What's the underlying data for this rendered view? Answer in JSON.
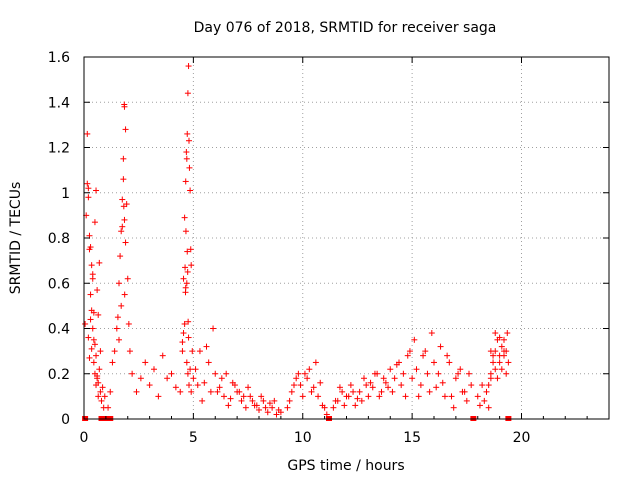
{
  "chart_data": {
    "type": "scatter",
    "title": "Day 076 of 2018, SRMTID for receiver saga",
    "xlabel": "GPS time / hours",
    "ylabel": "SRMTID / TECUs",
    "xlim": [
      0,
      24
    ],
    "ylim": [
      0,
      1.6
    ],
    "xticks": [
      0,
      5,
      10,
      15,
      20
    ],
    "yticks": [
      0,
      0.2,
      0.4,
      0.6,
      0.8,
      1.0,
      1.2,
      1.4,
      1.6
    ],
    "xtick_labels": [
      "0",
      "5",
      "10",
      "15",
      "20"
    ],
    "ytick_labels": [
      "0",
      "0.2",
      "0.4",
      "0.6",
      "0.8",
      "1",
      "1.2",
      "1.4",
      "1.6"
    ],
    "grid": true,
    "marker": "+",
    "color": "#ff0000",
    "series": [
      {
        "name": "SRMTID",
        "x": [
          0.05,
          0.1,
          0.15,
          0.2,
          0.25,
          0.3,
          0.35,
          0.4,
          0.45,
          0.5,
          0.55,
          0.6,
          0.65,
          0.7,
          0.75,
          0.8,
          0.85,
          0.9,
          0.95,
          0.15,
          0.2,
          0.25,
          0.3,
          0.35,
          0.4,
          0.45,
          0.5,
          0.55,
          0.6,
          0.65,
          0.7,
          0.75,
          0.2,
          0.25,
          0.3,
          0.35,
          0.4,
          0.45,
          0.5,
          0.55,
          0.6,
          0.65,
          1.1,
          1.2,
          1.3,
          1.4,
          1.5,
          1.55,
          1.6,
          1.65,
          1.7,
          1.75,
          1.8,
          1.85,
          1.9,
          1.95,
          2.0,
          2.05,
          2.1,
          1.6,
          1.7,
          1.75,
          1.8,
          1.85,
          1.9,
          1.82,
          1.84,
          1.86,
          2.2,
          2.4,
          2.6,
          2.8,
          3.0,
          3.2,
          3.4,
          3.6,
          3.8,
          4.0,
          4.2,
          4.4,
          4.5,
          4.55,
          4.6,
          4.65,
          4.7,
          4.75,
          4.8,
          4.85,
          4.9,
          4.95,
          5.0,
          4.5,
          4.55,
          4.6,
          4.65,
          4.7,
          4.72,
          4.75,
          4.78,
          4.8,
          4.82,
          4.85,
          4.88,
          4.9,
          4.62,
          4.64,
          4.66,
          4.68,
          4.7,
          4.72,
          4.74,
          4.76,
          4.78,
          5.1,
          5.3,
          5.5,
          5.7,
          5.9,
          6.1,
          6.3,
          6.5,
          6.7,
          6.9,
          7.1,
          7.3,
          7.5,
          7.7,
          7.9,
          8.1,
          8.3,
          8.5,
          8.7,
          8.9,
          5.2,
          5.4,
          5.6,
          5.8,
          6.0,
          6.2,
          6.4,
          6.6,
          6.8,
          7.0,
          7.2,
          7.4,
          7.6,
          7.8,
          8.0,
          8.2,
          8.4,
          8.6,
          8.8,
          9.0,
          9.3,
          9.5,
          9.7,
          9.9,
          10.1,
          10.3,
          10.5,
          10.7,
          10.9,
          11.1,
          9.4,
          9.6,
          9.8,
          10.0,
          10.2,
          10.4,
          10.6,
          10.8,
          11.0,
          11.4,
          11.6,
          11.8,
          12.0,
          12.2,
          12.4,
          12.6,
          12.8,
          13.0,
          13.2,
          13.4,
          13.6,
          13.8,
          14.0,
          14.2,
          14.4,
          14.6,
          14.8,
          11.5,
          11.7,
          11.9,
          12.1,
          12.3,
          12.5,
          12.7,
          12.9,
          13.1,
          13.3,
          13.5,
          13.7,
          13.9,
          14.1,
          14.3,
          14.5,
          14.7,
          14.9,
          15.0,
          15.2,
          15.4,
          15.6,
          15.8,
          16.0,
          16.2,
          16.4,
          16.6,
          16.8,
          17.0,
          17.2,
          17.4,
          17.6,
          15.1,
          15.3,
          15.5,
          15.7,
          15.9,
          16.1,
          16.3,
          16.5,
          16.7,
          16.9,
          17.1,
          17.3,
          17.5,
          17.7,
          18.0,
          18.1,
          18.2,
          18.3,
          18.4,
          18.5,
          18.6,
          18.7,
          18.8,
          18.9,
          19.0,
          19.1,
          19.2,
          19.3,
          19.4,
          18.5,
          18.6,
          18.7,
          18.8,
          18.9,
          19.0,
          19.1,
          19.2,
          19.3,
          18.6,
          18.8,
          19.0,
          19.2,
          19.35
        ],
        "y": [
          0.42,
          0.9,
          1.26,
          1.02,
          0.75,
          0.55,
          0.48,
          0.62,
          0.35,
          0.2,
          0.15,
          0.18,
          0.1,
          0.22,
          0.12,
          0.08,
          0.14,
          0.05,
          0.1,
          1.04,
          0.98,
          0.81,
          0.76,
          0.68,
          0.64,
          0.47,
          0.87,
          1.01,
          0.57,
          0.46,
          0.69,
          0.3,
          0.36,
          0.27,
          0.44,
          0.31,
          0.4,
          0.25,
          0.33,
          0.28,
          0.19,
          0.16,
          0.05,
          0.12,
          0.25,
          0.3,
          0.4,
          0.45,
          0.6,
          0.72,
          0.83,
          0.97,
          1.15,
          1.38,
          1.28,
          0.95,
          0.62,
          0.42,
          0.3,
          0.35,
          0.5,
          0.85,
          1.06,
          0.88,
          0.78,
          0.94,
          1.39,
          0.55,
          0.2,
          0.12,
          0.18,
          0.25,
          0.15,
          0.22,
          0.1,
          0.28,
          0.18,
          0.2,
          0.14,
          0.12,
          0.3,
          0.38,
          0.42,
          0.58,
          0.25,
          0.2,
          0.15,
          0.22,
          0.12,
          0.3,
          0.18,
          0.34,
          0.62,
          0.89,
          1.05,
          1.15,
          1.26,
          1.44,
          1.56,
          1.23,
          1.11,
          1.01,
          0.75,
          0.68,
          0.67,
          0.56,
          0.83,
          1.18,
          0.6,
          0.74,
          0.65,
          0.43,
          0.36,
          0.22,
          0.3,
          0.16,
          0.25,
          0.4,
          0.12,
          0.18,
          0.2,
          0.09,
          0.15,
          0.12,
          0.1,
          0.14,
          0.08,
          0.06,
          0.1,
          0.05,
          0.07,
          0.08,
          0.04,
          0.15,
          0.08,
          0.32,
          0.12,
          0.2,
          0.14,
          0.1,
          0.06,
          0.16,
          0.12,
          0.08,
          0.05,
          0.1,
          0.06,
          0.04,
          0.08,
          0.03,
          0.05,
          0.02,
          0.03,
          0.05,
          0.12,
          0.18,
          0.15,
          0.2,
          0.22,
          0.14,
          0.1,
          0.06,
          0.02,
          0.08,
          0.15,
          0.2,
          0.1,
          0.18,
          0.12,
          0.25,
          0.16,
          0.05,
          0.05,
          0.08,
          0.12,
          0.1,
          0.15,
          0.06,
          0.12,
          0.18,
          0.1,
          0.14,
          0.2,
          0.12,
          0.16,
          0.22,
          0.18,
          0.25,
          0.2,
          0.28,
          0.08,
          0.14,
          0.06,
          0.1,
          0.12,
          0.09,
          0.08,
          0.15,
          0.16,
          0.2,
          0.1,
          0.18,
          0.14,
          0.12,
          0.24,
          0.15,
          0.1,
          0.3,
          0.18,
          0.22,
          0.15,
          0.3,
          0.12,
          0.25,
          0.2,
          0.16,
          0.28,
          0.1,
          0.18,
          0.22,
          0.12,
          0.2,
          0.35,
          0.1,
          0.28,
          0.2,
          0.38,
          0.14,
          0.32,
          0.1,
          0.25,
          0.05,
          0.2,
          0.12,
          0.08,
          0.15,
          0.1,
          0.06,
          0.15,
          0.08,
          0.12,
          0.05,
          0.2,
          0.25,
          0.3,
          0.18,
          0.28,
          0.22,
          0.35,
          0.3,
          0.25,
          0.15,
          0.18,
          0.28,
          0.38,
          0.35,
          0.25,
          0.32,
          0.3,
          0.2,
          0.3,
          0.22,
          0.36,
          0.28,
          0.38
        ],
        "gap_markers_x": [
          0.05,
          0.8,
          1.0,
          1.2,
          11.2,
          17.8,
          19.4
        ]
      }
    ]
  }
}
